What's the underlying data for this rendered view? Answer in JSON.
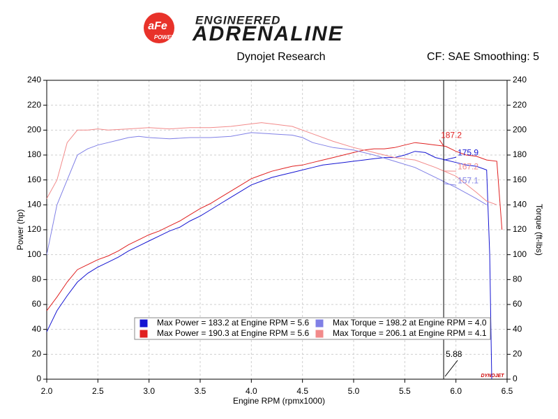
{
  "logo": {
    "top": "ENGINEERED",
    "main": "ADRENALINE",
    "badge": "aFe",
    "badge_sub": "POWER"
  },
  "chart_data": {
    "type": "line",
    "title": "Dynojet Research",
    "subtitle": "CF: SAE Smoothing: 5",
    "xlabel": "Engine RPM (rpmx1000)",
    "ylabel": "Power (hp)",
    "y2label": "Torque (ft-lbs)",
    "brand": "DYNOJET",
    "xlim": [
      2.0,
      6.5
    ],
    "xticks": [
      {
        "value": 2,
        "label": "2.0"
      },
      2.5,
      {
        "value": 3,
        "label": "3.0"
      },
      3.5,
      {
        "value": 4,
        "label": "4.0"
      },
      4.5,
      {
        "value": 5,
        "label": "5.0"
      },
      5.5,
      {
        "value": 6,
        "label": "6.0"
      },
      6.5
    ],
    "ylim": [
      0,
      240
    ],
    "yticks": [
      0,
      20,
      40,
      60,
      80,
      100,
      120,
      140,
      160,
      180,
      200,
      220,
      240
    ],
    "y2lim": [
      0,
      240
    ],
    "y2ticks": [
      0,
      20,
      40,
      60,
      80,
      100,
      120,
      140,
      160,
      180,
      200,
      220,
      240
    ],
    "grid": true,
    "series": [
      {
        "name": "Max Power = 183.2 at Engine RPM = 5.6",
        "color": "#1414d2",
        "x": [
          2.0,
          2.1,
          2.2,
          2.3,
          2.4,
          2.5,
          2.6,
          2.7,
          2.8,
          2.9,
          3.0,
          3.1,
          3.2,
          3.3,
          3.4,
          3.5,
          3.6,
          3.7,
          3.8,
          3.9,
          4.0,
          4.1,
          4.2,
          4.3,
          4.4,
          4.5,
          4.6,
          4.7,
          4.8,
          4.9,
          5.0,
          5.1,
          5.2,
          5.3,
          5.4,
          5.5,
          5.6,
          5.7,
          5.8,
          5.9,
          6.0,
          6.1,
          6.2,
          6.3,
          6.33,
          6.35
        ],
        "values": [
          38,
          55,
          67,
          78,
          85,
          90,
          94,
          98,
          103,
          107,
          111,
          115,
          119,
          122,
          127,
          131,
          136,
          141,
          146,
          151,
          156,
          159,
          162,
          164,
          166,
          168,
          170,
          172,
          173,
          174,
          175,
          176,
          177,
          178,
          178,
          180,
          183,
          182,
          178,
          176,
          174,
          172,
          171,
          168,
          100,
          0
        ]
      },
      {
        "name": "Max Power = 190.3 at Engine RPM = 5.6",
        "color": "#e02020",
        "x": [
          2.0,
          2.1,
          2.2,
          2.3,
          2.4,
          2.5,
          2.6,
          2.7,
          2.8,
          2.9,
          3.0,
          3.1,
          3.2,
          3.3,
          3.4,
          3.5,
          3.6,
          3.7,
          3.8,
          3.9,
          4.0,
          4.1,
          4.2,
          4.3,
          4.4,
          4.5,
          4.6,
          4.7,
          4.8,
          4.9,
          5.0,
          5.1,
          5.2,
          5.3,
          5.4,
          5.5,
          5.6,
          5.7,
          5.8,
          5.9,
          6.0,
          6.1,
          6.2,
          6.3,
          6.4,
          6.45
        ],
        "values": [
          55,
          66,
          78,
          88,
          92,
          96,
          99,
          103,
          108,
          112,
          116,
          119,
          123,
          127,
          132,
          137,
          141,
          146,
          151,
          156,
          161,
          164,
          167,
          169,
          171,
          172,
          174,
          176,
          178,
          180,
          182,
          184,
          185,
          185,
          186,
          188,
          190,
          189,
          188,
          187,
          183,
          180,
          179,
          176,
          175,
          120
        ]
      },
      {
        "name": "Max Torque = 198.2 at Engine RPM = 4.0",
        "color": "#8080e6",
        "axis": "y2",
        "x": [
          2.0,
          2.1,
          2.2,
          2.3,
          2.4,
          2.5,
          2.6,
          2.7,
          2.8,
          2.9,
          3.0,
          3.2,
          3.4,
          3.6,
          3.8,
          4.0,
          4.2,
          4.4,
          4.5,
          4.6,
          4.8,
          5.0,
          5.2,
          5.4,
          5.6,
          5.8,
          6.0,
          6.2,
          6.3
        ],
        "values": [
          100,
          140,
          160,
          180,
          185,
          188,
          190,
          192,
          194,
          195,
          194,
          193,
          194,
          194,
          195,
          198,
          197,
          196,
          194,
          190,
          186,
          184,
          180,
          175,
          170,
          162,
          154,
          145,
          140
        ]
      },
      {
        "name": "Max Torque = 206.1 at Engine RPM = 4.1",
        "color": "#f28a8a",
        "axis": "y2",
        "x": [
          2.0,
          2.1,
          2.2,
          2.3,
          2.4,
          2.5,
          2.6,
          2.8,
          3.0,
          3.2,
          3.4,
          3.6,
          3.8,
          4.0,
          4.1,
          4.2,
          4.4,
          4.6,
          4.8,
          5.0,
          5.2,
          5.4,
          5.6,
          5.8,
          6.0,
          6.2,
          6.3,
          6.4
        ],
        "values": [
          145,
          160,
          190,
          200,
          200,
          201,
          200,
          201,
          202,
          201,
          202,
          202,
          203,
          205,
          206,
          205,
          203,
          197,
          191,
          186,
          182,
          178,
          176,
          170,
          163,
          150,
          143,
          140
        ]
      }
    ],
    "cursor": {
      "x": 5.88,
      "readings": [
        {
          "value": 187.2,
          "color": "#e02020"
        },
        {
          "value": 175.9,
          "color": "#1414d2"
        },
        {
          "value": 167.2,
          "color": "#f28a8a"
        },
        {
          "value": 157.1,
          "color": "#8080e6"
        }
      ]
    }
  }
}
